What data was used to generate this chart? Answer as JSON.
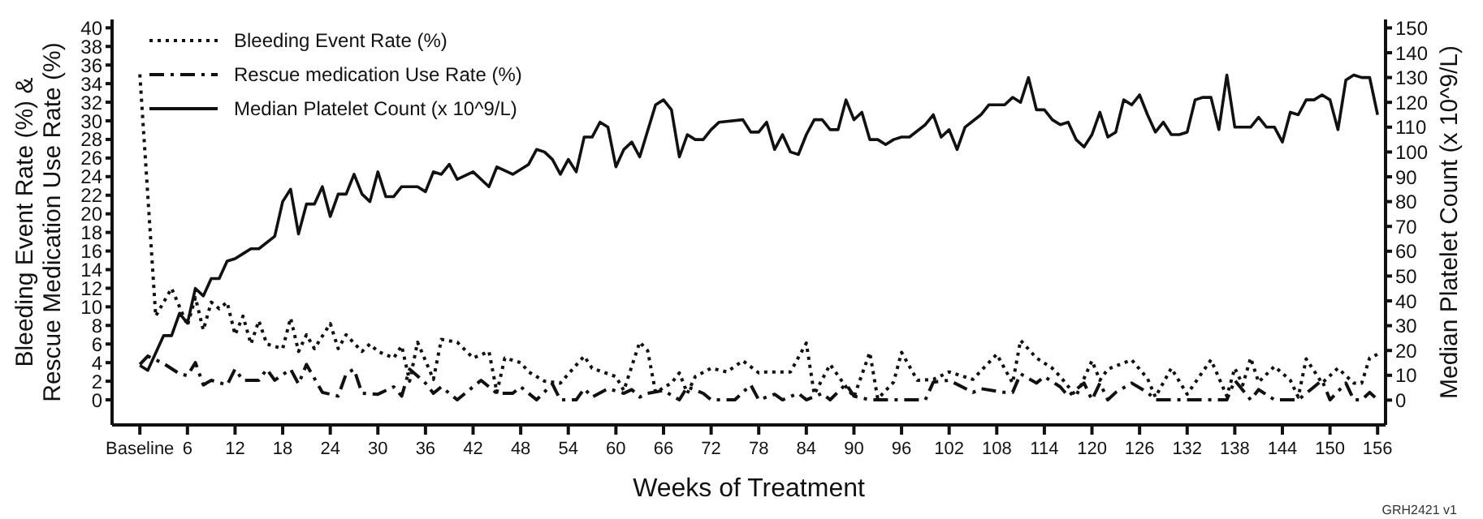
{
  "chart_data": {
    "type": "line",
    "xlabel": "Weeks of Treatment",
    "ylabel": "Bleeding Event Rate (%) & Rescue Medication Use Rate (%)",
    "y2label": "Median Platelet Count (x 10^9/L)",
    "annotations": [
      "GRH2421 v1"
    ],
    "xlim": [
      -3.5,
      157
    ],
    "xticks": [
      {
        "value": 0,
        "label": "Baseline"
      },
      6,
      12,
      18,
      24,
      30,
      36,
      42,
      48,
      54,
      60,
      66,
      72,
      78,
      84,
      90,
      96,
      102,
      108,
      114,
      120,
      126,
      132,
      138,
      144,
      150,
      156
    ],
    "ylim": [
      -2.7,
      40.9
    ],
    "yticks": [
      0,
      2,
      4,
      6,
      8,
      10,
      12,
      14,
      16,
      18,
      20,
      22,
      24,
      26,
      28,
      30,
      32,
      34,
      36,
      38,
      40
    ],
    "y2lim": [
      -10,
      153.4
    ],
    "y2ticks": [
      0,
      10,
      20,
      30,
      40,
      50,
      60,
      70,
      80,
      90,
      100,
      110,
      120,
      130,
      140,
      150
    ],
    "grid": false,
    "legend": "top left",
    "marker": "none",
    "series": [
      {
        "name": "Bleeding Event Rate (%)",
        "color": "#111111",
        "line_style": "dotted",
        "x": [
          0,
          2,
          4,
          5,
          6,
          7,
          8,
          9,
          10,
          11,
          12,
          13,
          14,
          15,
          16,
          18,
          19,
          20,
          21,
          22,
          24,
          25,
          26,
          28,
          29,
          30,
          32,
          33,
          34,
          35,
          37,
          38,
          40,
          42,
          44,
          45,
          46,
          48,
          49,
          51,
          53,
          56,
          57,
          60,
          61,
          63,
          64,
          65,
          67,
          68,
          69,
          70,
          72,
          74,
          76,
          78,
          79,
          82,
          84,
          85,
          87,
          89,
          90,
          92,
          93,
          95,
          96,
          98,
          100,
          102,
          105,
          108,
          110,
          111,
          113,
          115,
          116,
          118,
          120,
          121,
          122,
          125,
          127,
          128,
          130,
          132,
          135,
          137,
          138,
          139,
          140,
          141,
          143,
          145,
          146,
          147,
          149,
          151,
          153,
          154,
          155,
          156
        ],
        "values": [
          35,
          9,
          12,
          10,
          8,
          11,
          7.5,
          10.5,
          9.8,
          10.5,
          7,
          9,
          6,
          8.5,
          6,
          5.5,
          8.8,
          5.2,
          7,
          5.5,
          8.2,
          5.5,
          7,
          5.2,
          6,
          5.2,
          4.5,
          5.8,
          2,
          6.2,
          2.2,
          6.5,
          6.2,
          4.5,
          5.2,
          0.8,
          4.5,
          4,
          3,
          2,
          1.8,
          4.7,
          3.4,
          2.5,
          1,
          6.2,
          5.3,
          0.8,
          1.8,
          2.9,
          0.7,
          2.5,
          3.4,
          3,
          4.2,
          2.9,
          3,
          3,
          6.1,
          0.6,
          3.8,
          1.4,
          0.3,
          5.1,
          0.1,
          1.9,
          5.1,
          2.1,
          2.2,
          3,
          2.2,
          4.9,
          1.8,
          6.4,
          4.5,
          3.4,
          2.5,
          0.4,
          4.2,
          2.1,
          3.3,
          4.3,
          2.3,
          0.3,
          3.4,
          0.6,
          4.3,
          0.4,
          3.4,
          1.6,
          4.5,
          1.9,
          3.6,
          2.1,
          0.3,
          4.4,
          1.8,
          3.4,
          1.8,
          1.8,
          4.5,
          4.9
        ]
      },
      {
        "name": "Rescue medication Use Rate (%)",
        "color": "#111111",
        "line_style": "dashed",
        "x": [
          0,
          1,
          3,
          5,
          6,
          7,
          8,
          9,
          11,
          12,
          13,
          15,
          16,
          17,
          19,
          20,
          21,
          23,
          25,
          26,
          27,
          28,
          30,
          32,
          33,
          34,
          36,
          37,
          38,
          40,
          42,
          43,
          45,
          47,
          48,
          50,
          52,
          53,
          55,
          56,
          57,
          59,
          61,
          62,
          63,
          64,
          66,
          68,
          69,
          71,
          72,
          75,
          77,
          78,
          80,
          81,
          83,
          84,
          86,
          87,
          89,
          90,
          92,
          94,
          96,
          99,
          100,
          102,
          105,
          106,
          109,
          110,
          111,
          113,
          114,
          116,
          117,
          119,
          120,
          121,
          122,
          123,
          125,
          127,
          128,
          130,
          132,
          135,
          137,
          138,
          140,
          141,
          143,
          146,
          148,
          149,
          150,
          152,
          153,
          154,
          155,
          156
        ],
        "values": [
          3.8,
          4.7,
          3.9,
          2.8,
          2.6,
          4,
          1.6,
          2.1,
          1.6,
          3.3,
          2.1,
          2.1,
          3.3,
          2.1,
          3.3,
          1.7,
          3.8,
          0.8,
          0.4,
          2.8,
          3.3,
          0.7,
          0.6,
          1.4,
          0.4,
          3.3,
          1.8,
          0.7,
          1.4,
          0,
          1.4,
          2.1,
          0.7,
          0.7,
          1.4,
          0,
          1.7,
          0,
          0,
          1.2,
          0.3,
          1.2,
          0.7,
          1.1,
          0.3,
          0.7,
          1,
          0,
          1.4,
          0.7,
          0,
          0,
          1.6,
          0,
          0.6,
          0,
          0.7,
          0,
          0.7,
          0,
          1.7,
          0.4,
          0,
          0,
          0,
          0,
          1.9,
          2.1,
          0.8,
          1.2,
          0.8,
          0.8,
          2.8,
          1.8,
          2.5,
          1.4,
          0.4,
          1.8,
          0,
          1.8,
          0,
          0.8,
          1.8,
          0.8,
          0,
          0,
          0,
          0,
          0,
          2.1,
          0,
          1.1,
          0,
          0,
          1.4,
          2.1,
          0,
          1.8,
          0,
          0,
          0.8,
          0
        ]
      },
      {
        "name": "Median Platelet Count (x 10^9/L)",
        "color": "#111111",
        "line_style": "solid",
        "axis": "y2",
        "x": [
          0,
          1,
          3,
          4,
          5,
          6,
          7,
          8,
          9,
          10,
          11,
          12,
          13,
          14,
          15,
          17,
          18,
          19,
          20,
          21,
          22,
          23,
          24,
          25,
          26,
          27,
          28,
          29,
          30,
          31,
          32,
          33,
          35,
          36,
          37,
          38,
          39,
          40,
          42,
          44,
          45,
          47,
          49,
          50,
          51,
          52,
          53,
          54,
          55,
          56,
          57,
          58,
          59,
          60,
          61,
          62,
          63,
          65,
          66,
          67,
          68,
          69,
          70,
          71,
          72,
          73,
          76,
          77,
          78,
          79,
          80,
          81,
          82,
          83,
          84,
          85,
          86,
          87,
          88,
          89,
          90,
          91,
          92,
          93,
          94,
          95,
          96,
          97,
          99,
          100,
          101,
          102,
          103,
          104,
          106,
          107,
          109,
          110,
          111,
          112,
          113,
          114,
          115,
          116,
          117,
          118,
          119,
          120,
          121,
          122,
          123,
          124,
          125,
          126,
          127,
          128,
          129,
          130,
          131,
          132,
          133,
          134,
          135,
          136,
          137,
          138,
          140,
          141,
          142,
          143,
          144,
          145,
          146,
          147,
          148,
          149,
          150,
          151,
          152,
          153,
          154,
          155,
          156
        ],
        "values": [
          14,
          12,
          26,
          26,
          35,
          31,
          45,
          42,
          49,
          49,
          56,
          57,
          59,
          61,
          61,
          66,
          80,
          85,
          67,
          79,
          79,
          86,
          74,
          83,
          83,
          91,
          83,
          80,
          92,
          82,
          82,
          86,
          86,
          84,
          92,
          91,
          95,
          89,
          92,
          86,
          94,
          91,
          95,
          101,
          100,
          97,
          91,
          97,
          92,
          106,
          106,
          112,
          110,
          94,
          101,
          104,
          98,
          119,
          121,
          117,
          98,
          107,
          105,
          105,
          109,
          112,
          113,
          108,
          108,
          112,
          101,
          107,
          100,
          99,
          107,
          113,
          113,
          109,
          109,
          121,
          113,
          116,
          105,
          105,
          103,
          105,
          106,
          106,
          111,
          115,
          106,
          109,
          101,
          110,
          115,
          119,
          119,
          122,
          120,
          130,
          117,
          117,
          113,
          111,
          112,
          105,
          102,
          107,
          116,
          106,
          108,
          121,
          119,
          123,
          115,
          108,
          112,
          107,
          107,
          108,
          121,
          122,
          122,
          109,
          131,
          110,
          110,
          114,
          110,
          110,
          104,
          116,
          115,
          121,
          121,
          123,
          121,
          109,
          129,
          131,
          130,
          130,
          115
        ]
      }
    ]
  }
}
